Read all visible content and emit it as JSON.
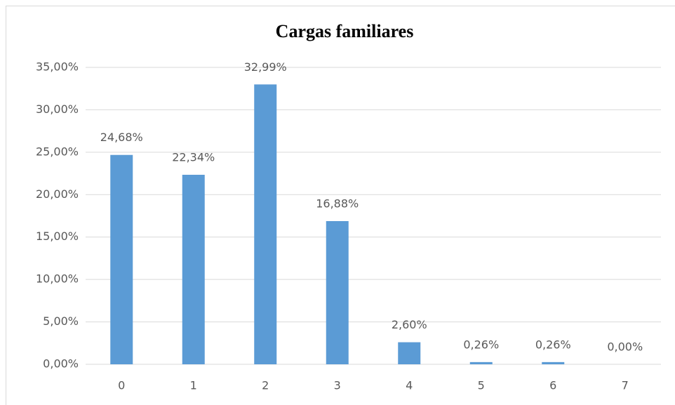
{
  "chart_data": {
    "type": "bar",
    "title": "Cargas familiares",
    "categories": [
      "0",
      "1",
      "2",
      "3",
      "4",
      "5",
      "6",
      "7"
    ],
    "values": [
      24.68,
      22.34,
      32.99,
      16.88,
      2.6,
      0.26,
      0.26,
      0.0
    ],
    "value_labels": [
      "24,68%",
      "22,34%",
      "32,99%",
      "16,88%",
      "2,60%",
      "0,26%",
      "0,26%",
      "0,00%"
    ],
    "color": "#5b9bd5",
    "ylim": [
      0,
      35
    ],
    "yticks": [
      {
        "value": 0,
        "label": "0,00%"
      },
      {
        "value": 5,
        "label": "5,00%"
      },
      {
        "value": 10,
        "label": "10,00%"
      },
      {
        "value": 15,
        "label": "15,00%"
      },
      {
        "value": 20,
        "label": "20,00%"
      },
      {
        "value": 25,
        "label": "25,00%"
      },
      {
        "value": 30,
        "label": "30,00%"
      },
      {
        "value": 35,
        "label": "35,00%"
      }
    ],
    "grid": true
  }
}
